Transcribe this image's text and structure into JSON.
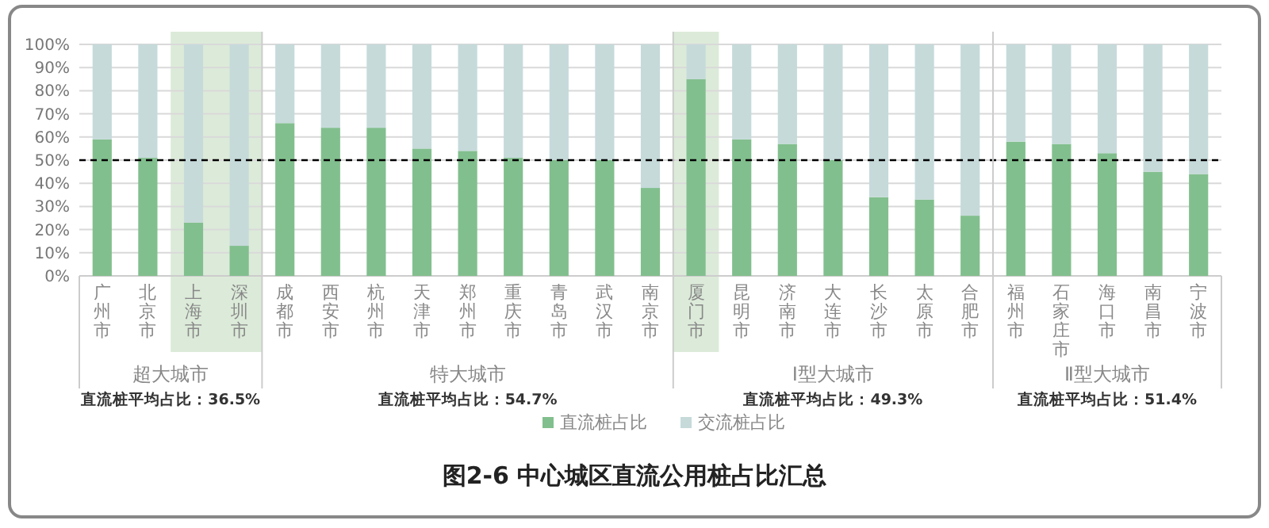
{
  "chart_data": {
    "type": "bar",
    "stacked": true,
    "title": "图2-6 中心城区直流公用桩占比汇总",
    "categories": [
      "广州市",
      "北京市",
      "上海市",
      "深圳市",
      "成都市",
      "西安市",
      "杭州市",
      "天津市",
      "郑州市",
      "重庆市",
      "青岛市",
      "武汉市",
      "南京市",
      "厦门市",
      "昆明市",
      "济南市",
      "大连市",
      "长沙市",
      "太原市",
      "合肥市",
      "福州市",
      "石家庄市",
      "海口市",
      "南昌市",
      "宁波市"
    ],
    "series": [
      {
        "name": "直流桩占比",
        "color": "#82bf8e",
        "values": [
          59,
          51,
          23,
          13,
          66,
          64,
          64,
          55,
          54,
          51,
          50,
          50,
          38,
          85,
          59,
          57,
          50,
          34,
          33,
          26,
          58,
          57,
          53,
          45,
          44
        ]
      },
      {
        "name": "交流桩占比",
        "color": "#c6dada",
        "values": [
          41,
          49,
          77,
          87,
          34,
          36,
          36,
          45,
          46,
          49,
          50,
          50,
          62,
          15,
          41,
          43,
          50,
          66,
          67,
          74,
          42,
          43,
          47,
          55,
          56
        ]
      }
    ],
    "ylim": [
      0,
      100
    ],
    "yticks": [
      {
        "value": 0,
        "label": "0%"
      },
      {
        "value": 10,
        "label": "10%"
      },
      {
        "value": 20,
        "label": "20%"
      },
      {
        "value": 30,
        "label": "30%"
      },
      {
        "value": 40,
        "label": "40%"
      },
      {
        "value": 50,
        "label": "50%"
      },
      {
        "value": 60,
        "label": "60%"
      },
      {
        "value": 70,
        "label": "70%"
      },
      {
        "value": 80,
        "label": "80%"
      },
      {
        "value": 90,
        "label": "90%"
      },
      {
        "value": 100,
        "label": "100%"
      }
    ],
    "grid": "y",
    "legend": "bottom",
    "ref_lines": [
      {
        "axis": "y",
        "value": 50,
        "color": "#000000",
        "line_style": "dashed"
      }
    ],
    "bands": [
      {
        "axis": "x",
        "from": "上海市",
        "to": "深圳市",
        "color": "#dcebd9"
      },
      {
        "axis": "x",
        "from": "厦门市",
        "to": "厦门市",
        "color": "#dcebd9"
      }
    ],
    "annotations": [
      "超大城市",
      "直流桩平均占比：36.5%",
      "特大城市",
      "直流桩平均占比：54.7%",
      "Ⅰ型大城市",
      "直流桩平均占比：49.3%",
      "Ⅱ型大城市",
      "直流桩平均占比：51.4%"
    ]
  }
}
